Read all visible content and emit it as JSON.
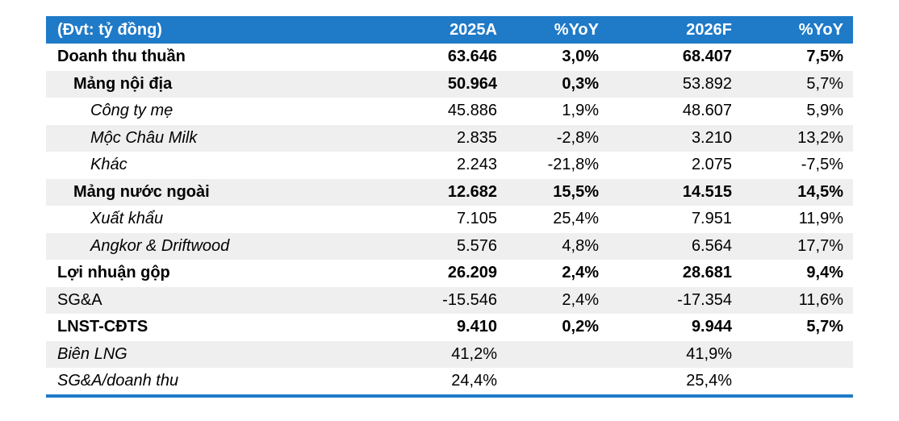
{
  "header": {
    "label": "(Đvt: tỷ đồng)",
    "col1": "2025A",
    "col2": "%YoY",
    "col3": "2026F",
    "col4": "%YoY"
  },
  "rows": [
    {
      "label": "Doanh thu thuần",
      "v1": "63.646",
      "v2": "3,0%",
      "v3": "68.407",
      "v4": "7,5%"
    },
    {
      "label": "Mảng nội địa",
      "v1": "50.964",
      "v2": "0,3%",
      "v3": "53.892",
      "v4": "5,7%"
    },
    {
      "label": "Công ty mẹ",
      "v1": "45.886",
      "v2": "1,9%",
      "v3": "48.607",
      "v4": "5,9%"
    },
    {
      "label": "Mộc Châu Milk",
      "v1": "2.835",
      "v2": "-2,8%",
      "v3": "3.210",
      "v4": "13,2%"
    },
    {
      "label": "Khác",
      "v1": "2.243",
      "v2": "-21,8%",
      "v3": "2.075",
      "v4": "-7,5%"
    },
    {
      "label": "Mảng nước ngoài",
      "v1": "12.682",
      "v2": "15,5%",
      "v3": "14.515",
      "v4": "14,5%"
    },
    {
      "label": "Xuất khẩu",
      "v1": "7.105",
      "v2": "25,4%",
      "v3": "7.951",
      "v4": "11,9%"
    },
    {
      "label": "Angkor & Driftwood",
      "v1": "5.576",
      "v2": "4,8%",
      "v3": "6.564",
      "v4": "17,7%"
    },
    {
      "label": "Lợi nhuận gộp",
      "v1": "26.209",
      "v2": "2,4%",
      "v3": "28.681",
      "v4": "9,4%"
    },
    {
      "label": "SG&A",
      "v1": "-15.546",
      "v2": "2,4%",
      "v3": "-17.354",
      "v4": "11,6%"
    },
    {
      "label": "LNST-CĐTS",
      "v1": "9.410",
      "v2": "0,2%",
      "v3": "9.944",
      "v4": "5,7%"
    },
    {
      "label": "Biên LNG",
      "v1": "41,2%",
      "v2": "",
      "v3": "41,9%",
      "v4": ""
    },
    {
      "label": "SG&A/doanh thu",
      "v1": "24,4%",
      "v2": "",
      "v3": "25,4%",
      "v4": ""
    }
  ],
  "colors": {
    "header_bg": "#1f7ac8",
    "row_shade": "#efefef",
    "rule": "#1f7ac8"
  }
}
